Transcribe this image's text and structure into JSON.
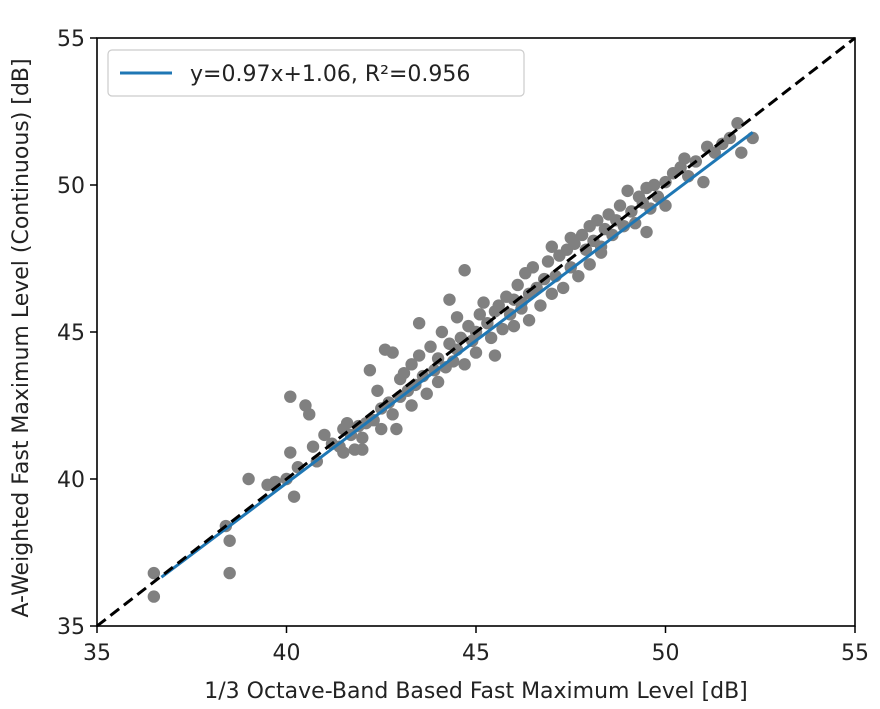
{
  "chart_data": {
    "type": "scatter",
    "title": "",
    "xlabel": "1/3 Octave-Band Based Fast Maximum Level [dB]",
    "ylabel": "A-Weighted Fast Maximum Level (Continuous) [dB]",
    "xlim": [
      35,
      55
    ],
    "ylim": [
      35,
      55
    ],
    "xticks": [
      35,
      40,
      45,
      50,
      55
    ],
    "yticks": [
      35,
      40,
      45,
      50,
      55
    ],
    "xtick_labels": [
      "35",
      "40",
      "45",
      "50",
      "55"
    ],
    "ytick_labels": [
      "35",
      "40",
      "45",
      "50",
      "55"
    ],
    "grid": false,
    "legend_position": "top-left",
    "colors": {
      "points": "#808080",
      "fit_line": "#1f77b4",
      "identity_line": "#000000"
    },
    "fit_line": {
      "label": "y=0.97x+1.06, R²=0.956",
      "slope": 0.97,
      "intercept": 1.06,
      "x_range": [
        36.7,
        52.3
      ]
    },
    "identity_line": {
      "x_range": [
        35,
        55
      ]
    },
    "points": [
      [
        36.5,
        36.8
      ],
      [
        36.5,
        36.0
      ],
      [
        38.4,
        38.4
      ],
      [
        38.5,
        37.9
      ],
      [
        38.5,
        36.8
      ],
      [
        39.0,
        40.0
      ],
      [
        39.5,
        39.8
      ],
      [
        39.7,
        39.9
      ],
      [
        40.0,
        40.0
      ],
      [
        40.1,
        40.9
      ],
      [
        40.1,
        42.8
      ],
      [
        40.2,
        39.4
      ],
      [
        40.3,
        40.4
      ],
      [
        40.5,
        42.5
      ],
      [
        40.6,
        42.2
      ],
      [
        40.7,
        41.1
      ],
      [
        40.8,
        40.6
      ],
      [
        41.0,
        41.5
      ],
      [
        41.2,
        41.2
      ],
      [
        41.4,
        41.1
      ],
      [
        41.5,
        41.7
      ],
      [
        41.5,
        40.9
      ],
      [
        41.6,
        41.9
      ],
      [
        41.7,
        41.5
      ],
      [
        41.8,
        41.0
      ],
      [
        41.9,
        41.8
      ],
      [
        42.0,
        41.4
      ],
      [
        42.0,
        41.0
      ],
      [
        42.1,
        41.9
      ],
      [
        42.2,
        43.7
      ],
      [
        42.3,
        42.0
      ],
      [
        42.4,
        43.0
      ],
      [
        42.5,
        42.4
      ],
      [
        42.5,
        41.7
      ],
      [
        42.6,
        44.4
      ],
      [
        42.7,
        42.6
      ],
      [
        42.8,
        44.3
      ],
      [
        42.8,
        42.2
      ],
      [
        42.9,
        41.7
      ],
      [
        43.0,
        43.4
      ],
      [
        43.0,
        42.8
      ],
      [
        43.1,
        43.6
      ],
      [
        43.2,
        43.0
      ],
      [
        43.3,
        42.5
      ],
      [
        43.3,
        43.9
      ],
      [
        43.4,
        43.2
      ],
      [
        43.5,
        44.2
      ],
      [
        43.5,
        45.3
      ],
      [
        43.6,
        43.5
      ],
      [
        43.7,
        42.9
      ],
      [
        43.8,
        44.5
      ],
      [
        43.9,
        43.7
      ],
      [
        44.0,
        44.1
      ],
      [
        44.0,
        43.3
      ],
      [
        44.1,
        45.0
      ],
      [
        44.2,
        43.8
      ],
      [
        44.3,
        44.6
      ],
      [
        44.3,
        46.1
      ],
      [
        44.4,
        44.0
      ],
      [
        44.5,
        44.4
      ],
      [
        44.5,
        45.5
      ],
      [
        44.6,
        44.8
      ],
      [
        44.7,
        47.1
      ],
      [
        44.7,
        43.9
      ],
      [
        44.8,
        45.2
      ],
      [
        44.9,
        44.7
      ],
      [
        45.0,
        45.0
      ],
      [
        45.0,
        44.3
      ],
      [
        45.1,
        45.6
      ],
      [
        45.2,
        46.0
      ],
      [
        45.3,
        45.3
      ],
      [
        45.4,
        44.8
      ],
      [
        45.5,
        45.7
      ],
      [
        45.5,
        44.2
      ],
      [
        45.6,
        45.9
      ],
      [
        45.7,
        45.1
      ],
      [
        45.8,
        46.2
      ],
      [
        45.9,
        45.6
      ],
      [
        46.0,
        46.1
      ],
      [
        46.0,
        45.2
      ],
      [
        46.1,
        46.6
      ],
      [
        46.2,
        45.8
      ],
      [
        46.3,
        47.0
      ],
      [
        46.4,
        46.3
      ],
      [
        46.4,
        45.4
      ],
      [
        46.5,
        47.2
      ],
      [
        46.6,
        46.5
      ],
      [
        46.7,
        45.9
      ],
      [
        46.8,
        46.8
      ],
      [
        46.9,
        47.4
      ],
      [
        47.0,
        46.3
      ],
      [
        47.0,
        47.9
      ],
      [
        47.1,
        46.9
      ],
      [
        47.2,
        47.6
      ],
      [
        47.3,
        46.5
      ],
      [
        47.4,
        47.8
      ],
      [
        47.5,
        47.2
      ],
      [
        47.6,
        48.0
      ],
      [
        47.7,
        46.9
      ],
      [
        47.8,
        48.3
      ],
      [
        47.9,
        47.8
      ],
      [
        48.0,
        48.6
      ],
      [
        48.0,
        47.3
      ],
      [
        48.1,
        48.1
      ],
      [
        48.2,
        48.8
      ],
      [
        48.3,
        47.9
      ],
      [
        48.4,
        48.5
      ],
      [
        48.5,
        49.0
      ],
      [
        48.6,
        48.3
      ],
      [
        48.7,
        48.8
      ],
      [
        48.8,
        49.3
      ],
      [
        48.9,
        48.6
      ],
      [
        49.0,
        49.8
      ],
      [
        49.1,
        49.1
      ],
      [
        49.2,
        48.7
      ],
      [
        49.3,
        49.6
      ],
      [
        49.4,
        49.4
      ],
      [
        49.5,
        49.9
      ],
      [
        49.5,
        48.4
      ],
      [
        49.6,
        49.2
      ],
      [
        49.7,
        50.0
      ],
      [
        49.8,
        49.6
      ],
      [
        50.0,
        50.1
      ],
      [
        50.0,
        49.3
      ],
      [
        50.2,
        50.4
      ],
      [
        50.4,
        50.6
      ],
      [
        50.5,
        50.9
      ],
      [
        50.6,
        50.3
      ],
      [
        50.8,
        50.8
      ],
      [
        51.0,
        50.1
      ],
      [
        51.1,
        51.3
      ],
      [
        51.3,
        51.1
      ],
      [
        51.5,
        51.4
      ],
      [
        51.7,
        51.6
      ],
      [
        51.9,
        52.1
      ],
      [
        52.0,
        51.1
      ],
      [
        52.3,
        51.6
      ],
      [
        48.3,
        47.7
      ],
      [
        47.5,
        48.2
      ],
      [
        46.2,
        46.0
      ]
    ]
  }
}
